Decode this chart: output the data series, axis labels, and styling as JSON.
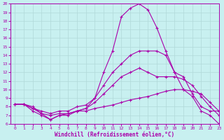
{
  "xlabel": "Windchill (Refroidissement éolien,°C)",
  "bg_color": "#c8f0f0",
  "grid_color": "#b0d8d8",
  "line_color": "#aa00aa",
  "marker": "+",
  "xlim": [
    -0.5,
    23
  ],
  "ylim": [
    6,
    20
  ],
  "xticks": [
    0,
    1,
    2,
    3,
    4,
    5,
    6,
    7,
    8,
    9,
    10,
    11,
    12,
    13,
    14,
    15,
    16,
    17,
    18,
    19,
    20,
    21,
    22,
    23
  ],
  "yticks": [
    6,
    7,
    8,
    9,
    10,
    11,
    12,
    13,
    14,
    15,
    16,
    17,
    18,
    19,
    20
  ],
  "line1_x": [
    0,
    1,
    2,
    3,
    4,
    5,
    6,
    7,
    8,
    9,
    10,
    11,
    12,
    13,
    14,
    15,
    16,
    17,
    18,
    19,
    20,
    21,
    22,
    23
  ],
  "line1_y": [
    8.3,
    8.3,
    8.0,
    7.2,
    6.5,
    7.0,
    7.2,
    7.5,
    7.8,
    9.0,
    12.0,
    14.5,
    18.5,
    19.5,
    20.0,
    19.3,
    17.2,
    14.5,
    12.0,
    10.0,
    9.2,
    7.5,
    7.0,
    6.0
  ],
  "line2_x": [
    0,
    1,
    2,
    3,
    4,
    5,
    6,
    7,
    8,
    9,
    10,
    11,
    12,
    13,
    14,
    15,
    16,
    17,
    18,
    19,
    20,
    21,
    22,
    23
  ],
  "line2_y": [
    8.3,
    8.3,
    7.8,
    7.5,
    7.2,
    7.5,
    7.5,
    8.0,
    8.2,
    9.0,
    10.5,
    12.0,
    13.0,
    14.0,
    14.5,
    14.5,
    14.5,
    14.0,
    12.0,
    11.5,
    9.5,
    8.0,
    7.5,
    7.5
  ],
  "line3_x": [
    0,
    1,
    2,
    3,
    4,
    5,
    6,
    7,
    8,
    9,
    10,
    11,
    12,
    13,
    14,
    15,
    16,
    17,
    18,
    19,
    20,
    21,
    22,
    23
  ],
  "line3_y": [
    8.3,
    8.3,
    7.8,
    7.2,
    7.0,
    7.2,
    7.2,
    7.5,
    7.8,
    8.5,
    9.5,
    10.5,
    11.5,
    12.0,
    12.5,
    12.0,
    11.5,
    11.5,
    11.5,
    11.2,
    10.5,
    9.2,
    8.0,
    7.0
  ],
  "line4_x": [
    0,
    1,
    2,
    3,
    4,
    5,
    6,
    7,
    8,
    9,
    10,
    11,
    12,
    13,
    14,
    15,
    16,
    17,
    18,
    19,
    20,
    21,
    22,
    23
  ],
  "line4_y": [
    8.3,
    8.3,
    7.5,
    7.0,
    6.5,
    7.0,
    7.0,
    7.5,
    7.5,
    7.8,
    8.0,
    8.2,
    8.5,
    8.8,
    9.0,
    9.2,
    9.5,
    9.8,
    10.0,
    10.0,
    9.8,
    9.5,
    8.5,
    7.5
  ]
}
